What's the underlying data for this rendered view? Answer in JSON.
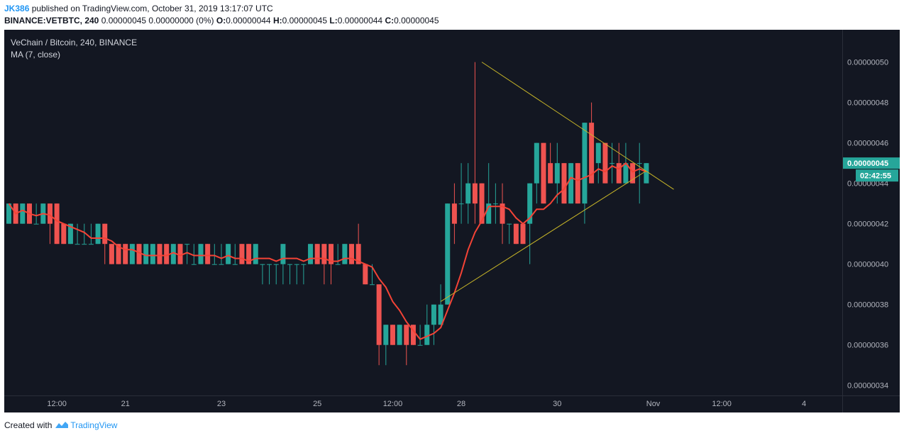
{
  "header": {
    "user": "JK386",
    "published_text": "published on TradingView.com, October 31, 2019 13:17:07 UTC",
    "symbol_line": "BINANCE:VETBTC, 240",
    "change_text": "0.00000045 0.00000000 (0%)",
    "o_label": "O:",
    "o_value": "0.00000044",
    "h_label": "H:",
    "h_value": "0.00000045",
    "l_label": "L:",
    "l_value": "0.00000044",
    "c_label": "C:",
    "c_value": "0.00000045"
  },
  "legend": {
    "title": "VeChain / Bitcoin, 240, BINANCE",
    "indicator": "MA (7, close)"
  },
  "footer": {
    "created_with": "Created with",
    "brand": "TradingView"
  },
  "colors": {
    "background": "#131722",
    "up": "#26a69a",
    "down": "#ef5350",
    "ma": "#f44336",
    "trendline": "#c8b628",
    "price_label_bg": "#26a69a",
    "axis_text": "#b2b5be"
  },
  "chart_data": {
    "type": "candlestick",
    "symbol": "VETBTC",
    "timeframe": "240",
    "exchange": "BINANCE",
    "x_tick_labels": [
      "12:00",
      "21",
      "23",
      "25",
      "12:00",
      "28",
      "30",
      "Nov",
      "12:00",
      "4"
    ],
    "y_tick_labels": [
      "0.00000050",
      "0.00000048",
      "0.00000046",
      "0.00000044",
      "0.00000042",
      "0.00000040",
      "0.00000038",
      "0.00000036",
      "0.00000034"
    ],
    "ylim": [
      3.35e-07,
      5.16e-07
    ],
    "last_price": "0.00000045",
    "countdown": "02:42:55",
    "candles": [
      {
        "o": 4.2e-07,
        "h": 4.3e-07,
        "l": 4.2e-07,
        "c": 4.3e-07
      },
      {
        "o": 4.3e-07,
        "h": 4.3e-07,
        "l": 4.2e-07,
        "c": 4.2e-07
      },
      {
        "o": 4.2e-07,
        "h": 4.3e-07,
        "l": 4.2e-07,
        "c": 4.3e-07
      },
      {
        "o": 4.3e-07,
        "h": 4.3e-07,
        "l": 4.2e-07,
        "c": 4.2e-07
      },
      {
        "o": 4.2e-07,
        "h": 4.3e-07,
        "l": 4.2e-07,
        "c": 4.2e-07
      },
      {
        "o": 4.2e-07,
        "h": 4.3e-07,
        "l": 4.2e-07,
        "c": 4.3e-07
      },
      {
        "o": 4.3e-07,
        "h": 4.3e-07,
        "l": 4.1e-07,
        "c": 4.2e-07
      },
      {
        "o": 4.3e-07,
        "h": 4.3e-07,
        "l": 4.1e-07,
        "c": 4.1e-07
      },
      {
        "o": 4.2e-07,
        "h": 4.2e-07,
        "l": 4.1e-07,
        "c": 4.1e-07
      },
      {
        "o": 4.1e-07,
        "h": 4.2e-07,
        "l": 4.1e-07,
        "c": 4.2e-07
      },
      {
        "o": 4.1e-07,
        "h": 4.2e-07,
        "l": 4.1e-07,
        "c": 4.1e-07
      },
      {
        "o": 4.1e-07,
        "h": 4.2e-07,
        "l": 4.1e-07,
        "c": 4.1e-07
      },
      {
        "o": 4.1e-07,
        "h": 4.2e-07,
        "l": 4.1e-07,
        "c": 4.1e-07
      },
      {
        "o": 4.1e-07,
        "h": 4.2e-07,
        "l": 4.1e-07,
        "c": 4.2e-07
      },
      {
        "o": 4.2e-07,
        "h": 4.2e-07,
        "l": 4e-07,
        "c": 4.1e-07
      },
      {
        "o": 4.1e-07,
        "h": 4.1e-07,
        "l": 4e-07,
        "c": 4e-07
      },
      {
        "o": 4.1e-07,
        "h": 4.1e-07,
        "l": 4e-07,
        "c": 4e-07
      },
      {
        "o": 4.1e-07,
        "h": 4.1e-07,
        "l": 4e-07,
        "c": 4e-07
      },
      {
        "o": 4e-07,
        "h": 4.1e-07,
        "l": 4e-07,
        "c": 4.1e-07
      },
      {
        "o": 4.1e-07,
        "h": 4.1e-07,
        "l": 4e-07,
        "c": 4e-07
      },
      {
        "o": 4e-07,
        "h": 4.1e-07,
        "l": 4e-07,
        "c": 4.1e-07
      },
      {
        "o": 4e-07,
        "h": 4.1e-07,
        "l": 4e-07,
        "c": 4.1e-07
      },
      {
        "o": 4.1e-07,
        "h": 4.1e-07,
        "l": 4e-07,
        "c": 4e-07
      },
      {
        "o": 4.1e-07,
        "h": 4.1e-07,
        "l": 4e-07,
        "c": 4e-07
      },
      {
        "o": 4e-07,
        "h": 4.1e-07,
        "l": 4e-07,
        "c": 4.1e-07
      },
      {
        "o": 4.1e-07,
        "h": 4.1e-07,
        "l": 4e-07,
        "c": 4e-07
      },
      {
        "o": 4.1e-07,
        "h": 4.1e-07,
        "l": 4e-07,
        "c": 4.1e-07
      },
      {
        "o": 4e-07,
        "h": 4.1e-07,
        "l": 4e-07,
        "c": 4e-07
      },
      {
        "o": 4e-07,
        "h": 4.1e-07,
        "l": 4e-07,
        "c": 4.1e-07
      },
      {
        "o": 4.1e-07,
        "h": 4.1e-07,
        "l": 4e-07,
        "c": 4e-07
      },
      {
        "o": 4e-07,
        "h": 4.1e-07,
        "l": 4e-07,
        "c": 4e-07
      },
      {
        "o": 4e-07,
        "h": 4.1e-07,
        "l": 4e-07,
        "c": 4e-07
      },
      {
        "o": 4e-07,
        "h": 4.1e-07,
        "l": 4e-07,
        "c": 4.1e-07
      },
      {
        "o": 4e-07,
        "h": 4.1e-07,
        "l": 4e-07,
        "c": 4e-07
      },
      {
        "o": 4.1e-07,
        "h": 4.1e-07,
        "l": 4e-07,
        "c": 4e-07
      },
      {
        "o": 4.1e-07,
        "h": 4.1e-07,
        "l": 4e-07,
        "c": 4e-07
      },
      {
        "o": 4e-07,
        "h": 4.1e-07,
        "l": 4e-07,
        "c": 4.1e-07
      },
      {
        "o": 4e-07,
        "h": 4e-07,
        "l": 3.9e-07,
        "c": 4e-07
      },
      {
        "o": 4e-07,
        "h": 4e-07,
        "l": 3.9e-07,
        "c": 4e-07
      },
      {
        "o": 4e-07,
        "h": 4e-07,
        "l": 3.9e-07,
        "c": 4e-07
      },
      {
        "o": 4e-07,
        "h": 4.1e-07,
        "l": 3.9e-07,
        "c": 4.1e-07
      },
      {
        "o": 4e-07,
        "h": 4e-07,
        "l": 3.9e-07,
        "c": 4e-07
      },
      {
        "o": 4e-07,
        "h": 4e-07,
        "l": 3.9e-07,
        "c": 4e-07
      },
      {
        "o": 4e-07,
        "h": 4e-07,
        "l": 3.9e-07,
        "c": 4e-07
      },
      {
        "o": 4e-07,
        "h": 4.1e-07,
        "l": 4e-07,
        "c": 4.1e-07
      },
      {
        "o": 4.1e-07,
        "h": 4.1e-07,
        "l": 4e-07,
        "c": 4e-07
      },
      {
        "o": 4.1e-07,
        "h": 4.1e-07,
        "l": 3.9e-07,
        "c": 4e-07
      },
      {
        "o": 4.1e-07,
        "h": 4.1e-07,
        "l": 3.9e-07,
        "c": 4e-07
      },
      {
        "o": 4e-07,
        "h": 4.1e-07,
        "l": 4e-07,
        "c": 4e-07
      },
      {
        "o": 4e-07,
        "h": 4.1e-07,
        "l": 4e-07,
        "c": 4.1e-07
      },
      {
        "o": 4.1e-07,
        "h": 4.1e-07,
        "l": 4e-07,
        "c": 4e-07
      },
      {
        "o": 4.1e-07,
        "h": 4.2e-07,
        "l": 4e-07,
        "c": 4e-07
      },
      {
        "o": 4e-07,
        "h": 4e-07,
        "l": 3.9e-07,
        "c": 3.9e-07
      },
      {
        "o": 3.9e-07,
        "h": 4e-07,
        "l": 3.9e-07,
        "c": 3.9e-07
      },
      {
        "o": 3.9e-07,
        "h": 3.9e-07,
        "l": 3.5e-07,
        "c": 3.6e-07
      },
      {
        "o": 3.6e-07,
        "h": 3.7e-07,
        "l": 3.5e-07,
        "c": 3.7e-07
      },
      {
        "o": 3.7e-07,
        "h": 3.7e-07,
        "l": 3.6e-07,
        "c": 3.6e-07
      },
      {
        "o": 3.6e-07,
        "h": 3.7e-07,
        "l": 3.6e-07,
        "c": 3.7e-07
      },
      {
        "o": 3.7e-07,
        "h": 3.7e-07,
        "l": 3.5e-07,
        "c": 3.6e-07
      },
      {
        "o": 3.7e-07,
        "h": 3.7e-07,
        "l": 3.6e-07,
        "c": 3.6e-07
      },
      {
        "o": 3.6e-07,
        "h": 3.7e-07,
        "l": 3.6e-07,
        "c": 3.6e-07
      },
      {
        "o": 3.6e-07,
        "h": 3.8e-07,
        "l": 3.6e-07,
        "c": 3.7e-07
      },
      {
        "o": 3.7e-07,
        "h": 3.8e-07,
        "l": 3.6e-07,
        "c": 3.8e-07
      },
      {
        "o": 3.7e-07,
        "h": 3.9e-07,
        "l": 3.7e-07,
        "c": 3.8e-07
      },
      {
        "o": 3.8e-07,
        "h": 4.3e-07,
        "l": 3.8e-07,
        "c": 4.3e-07
      },
      {
        "o": 4.3e-07,
        "h": 4.4e-07,
        "l": 4.1e-07,
        "c": 4.2e-07
      },
      {
        "o": 4.3e-07,
        "h": 4.5e-07,
        "l": 4.2e-07,
        "c": 4.3e-07
      },
      {
        "o": 4.3e-07,
        "h": 4.5e-07,
        "l": 4.2e-07,
        "c": 4.4e-07
      },
      {
        "o": 4.4e-07,
        "h": 5e-07,
        "l": 4.2e-07,
        "c": 4.3e-07
      },
      {
        "o": 4.4e-07,
        "h": 4.4e-07,
        "l": 4.2e-07,
        "c": 4.2e-07
      },
      {
        "o": 4.2e-07,
        "h": 4.5e-07,
        "l": 4.2e-07,
        "c": 4.3e-07
      },
      {
        "o": 4.3e-07,
        "h": 4.4e-07,
        "l": 4.2e-07,
        "c": 4.3e-07
      },
      {
        "o": 4.3e-07,
        "h": 4.4e-07,
        "l": 4.1e-07,
        "c": 4.2e-07
      },
      {
        "o": 4.2e-07,
        "h": 4.2e-07,
        "l": 4.1e-07,
        "c": 4.2e-07
      },
      {
        "o": 4.2e-07,
        "h": 4.2e-07,
        "l": 4.1e-07,
        "c": 4.1e-07
      },
      {
        "o": 4.2e-07,
        "h": 4.2e-07,
        "l": 4.1e-07,
        "c": 4.1e-07
      },
      {
        "o": 4.2e-07,
        "h": 4.4e-07,
        "l": 4e-07,
        "c": 4.4e-07
      },
      {
        "o": 4.4e-07,
        "h": 4.6e-07,
        "l": 4.3e-07,
        "c": 4.6e-07
      },
      {
        "o": 4.6e-07,
        "h": 4.6e-07,
        "l": 4.3e-07,
        "c": 4.3e-07
      },
      {
        "o": 4.5e-07,
        "h": 4.6e-07,
        "l": 4.4e-07,
        "c": 4.4e-07
      },
      {
        "o": 4.4e-07,
        "h": 4.6e-07,
        "l": 4.3e-07,
        "c": 4.5e-07
      },
      {
        "o": 4.5e-07,
        "h": 4.5e-07,
        "l": 4.3e-07,
        "c": 4.3e-07
      },
      {
        "o": 4.3e-07,
        "h": 4.5e-07,
        "l": 4.3e-07,
        "c": 4.5e-07
      },
      {
        "o": 4.5e-07,
        "h": 4.5e-07,
        "l": 4.3e-07,
        "c": 4.3e-07
      },
      {
        "o": 4.3e-07,
        "h": 4.7e-07,
        "l": 4.2e-07,
        "c": 4.7e-07
      },
      {
        "o": 4.7e-07,
        "h": 4.8e-07,
        "l": 4.4e-07,
        "c": 4.4e-07
      },
      {
        "o": 4.5e-07,
        "h": 4.6e-07,
        "l": 4.4e-07,
        "c": 4.6e-07
      },
      {
        "o": 4.6e-07,
        "h": 4.6e-07,
        "l": 4.4e-07,
        "c": 4.4e-07
      },
      {
        "o": 4.5e-07,
        "h": 4.6e-07,
        "l": 4.4e-07,
        "c": 4.5e-07
      },
      {
        "o": 4.5e-07,
        "h": 4.6e-07,
        "l": 4.4e-07,
        "c": 4.4e-07
      },
      {
        "o": 4.4e-07,
        "h": 4.6e-07,
        "l": 4.4e-07,
        "c": 4.5e-07
      },
      {
        "o": 4.5e-07,
        "h": 4.5e-07,
        "l": 4.4e-07,
        "c": 4.4e-07
      },
      {
        "o": 4.5e-07,
        "h": 4.6e-07,
        "l": 4.3e-07,
        "c": 4.5e-07
      },
      {
        "o": 4.4e-07,
        "h": 4.5e-07,
        "l": 4.4e-07,
        "c": 4.5e-07
      }
    ],
    "trendlines": [
      {
        "name": "upper",
        "from": {
          "index": 69,
          "price": 5e-07
        },
        "to": {
          "index": 97,
          "price": 4.37e-07
        }
      },
      {
        "name": "lower",
        "from": {
          "index": 63,
          "price": 3.815e-07
        },
        "to": {
          "index": 93,
          "price": 4.462e-07
        }
      }
    ]
  }
}
